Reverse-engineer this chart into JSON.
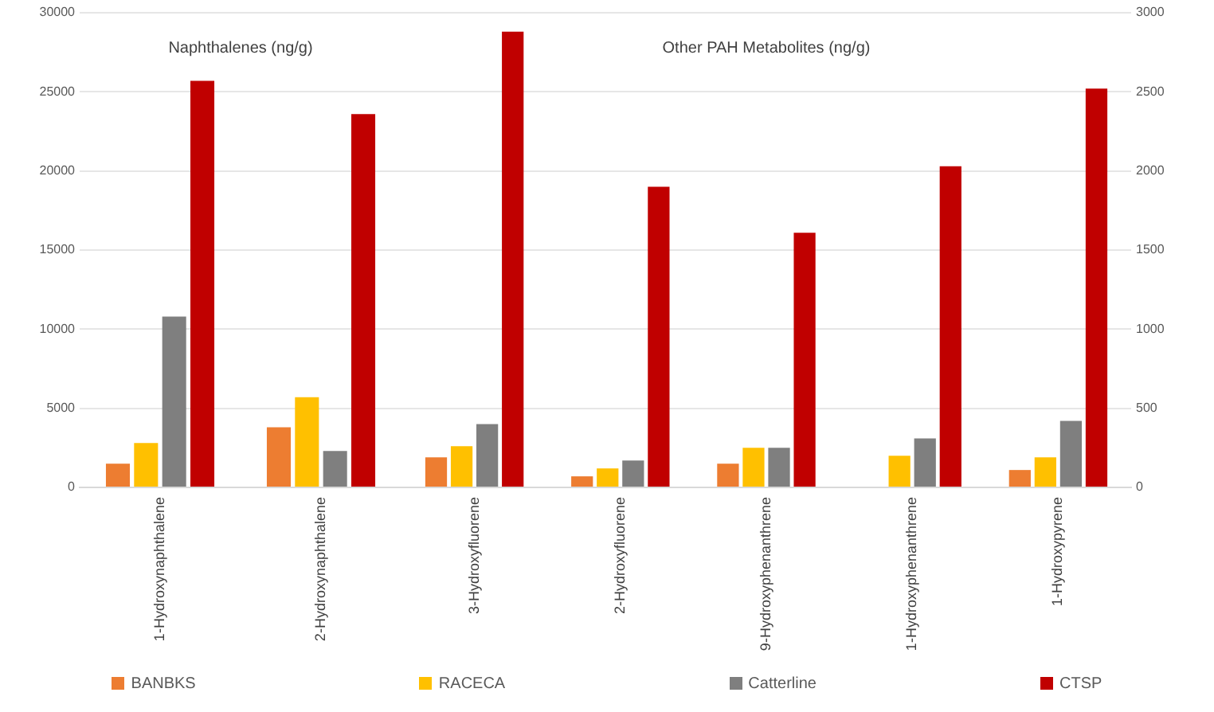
{
  "chart_data": [
    {
      "type": "bar",
      "title": "Naphthalenes (ng/g)",
      "categories": [
        "1-Hydroxynaphthalene",
        "2-Hydroxynaphthalene"
      ],
      "series": [
        {
          "name": "BANBKS",
          "color": "#ed7d31",
          "values": [
            1500,
            3800
          ]
        },
        {
          "name": "RACECA",
          "color": "#ffc000",
          "values": [
            2800,
            5700
          ]
        },
        {
          "name": "Catterline",
          "color": "#7f7f7f",
          "values": [
            10800,
            2300
          ]
        },
        {
          "name": "CTSP",
          "color": "#c00000",
          "values": [
            25700,
            23600
          ]
        }
      ],
      "ylim": [
        0,
        30000
      ],
      "yticks": [
        0,
        5000,
        10000,
        15000,
        20000,
        25000,
        30000
      ],
      "grid": "y",
      "legend": "bottom"
    },
    {
      "type": "bar",
      "title": "Other PAH Metabolites (ng/g)",
      "categories": [
        "3-Hydroxyfluorene",
        "2-Hydroxyfluorene",
        "9-Hydroxyphenanthrene",
        "1-Hydroxyphenanthrene",
        "1-Hydroxypyrene"
      ],
      "series": [
        {
          "color": "#ed7d31",
          "values": [
            190,
            70,
            150,
            null,
            110
          ]
        },
        {
          "color": "#ffc000",
          "values": [
            260,
            120,
            250,
            200,
            190
          ]
        },
        {
          "color": "#7f7f7f",
          "values": [
            400,
            170,
            250,
            310,
            420
          ]
        },
        {
          "color": "#c00000",
          "values": [
            2880,
            1900,
            1610,
            2030,
            2520
          ]
        }
      ],
      "ylim": [
        0,
        3000
      ],
      "yticks": [
        0,
        500,
        1000,
        1500,
        2000,
        2500,
        3000
      ],
      "grid": "y",
      "legend": false
    }
  ]
}
